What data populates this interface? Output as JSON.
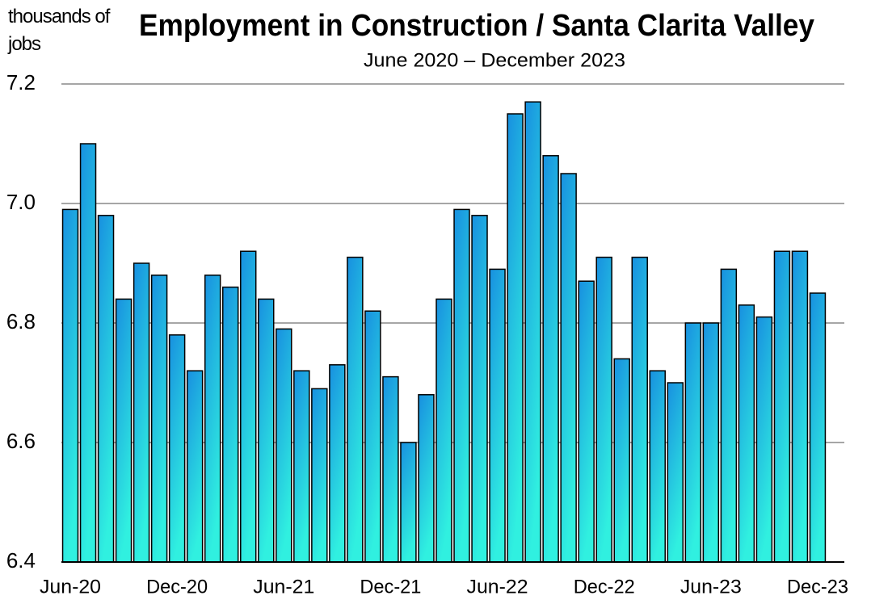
{
  "chart_data": {
    "type": "bar",
    "title": "Employment in Construction / Santa Clarita Valley",
    "subtitle": "June 2020 – December 2023",
    "y_label": "thousands of jobs",
    "categories": [
      "Jun-20",
      null,
      null,
      null,
      null,
      null,
      "Dec-20",
      null,
      null,
      null,
      null,
      null,
      "Jun-21",
      null,
      null,
      null,
      null,
      null,
      "Dec-21",
      null,
      null,
      null,
      null,
      null,
      "Jun-22",
      null,
      null,
      null,
      null,
      null,
      "Dec-22",
      null,
      null,
      null,
      null,
      null,
      "Jun-23",
      null,
      null,
      null,
      null,
      null,
      "Dec-23"
    ],
    "values": [
      6.99,
      7.1,
      6.98,
      6.84,
      6.9,
      6.88,
      6.78,
      6.72,
      6.88,
      6.86,
      6.92,
      6.84,
      6.79,
      6.72,
      6.69,
      6.73,
      6.91,
      6.82,
      6.71,
      6.6,
      6.68,
      6.84,
      6.99,
      6.98,
      6.89,
      7.15,
      7.17,
      7.08,
      7.05,
      6.87,
      6.91,
      6.74,
      6.91,
      6.72,
      6.7,
      6.8,
      6.8,
      6.89,
      6.83,
      6.81,
      6.92,
      6.92,
      6.85
    ],
    "color": "#18a8e8",
    "ylim": [
      6.4,
      7.2
    ],
    "yticks": [
      6.4,
      6.6,
      6.8,
      {
        "value": 7,
        "label": "7.0"
      },
      7.2
    ],
    "grid": true
  }
}
